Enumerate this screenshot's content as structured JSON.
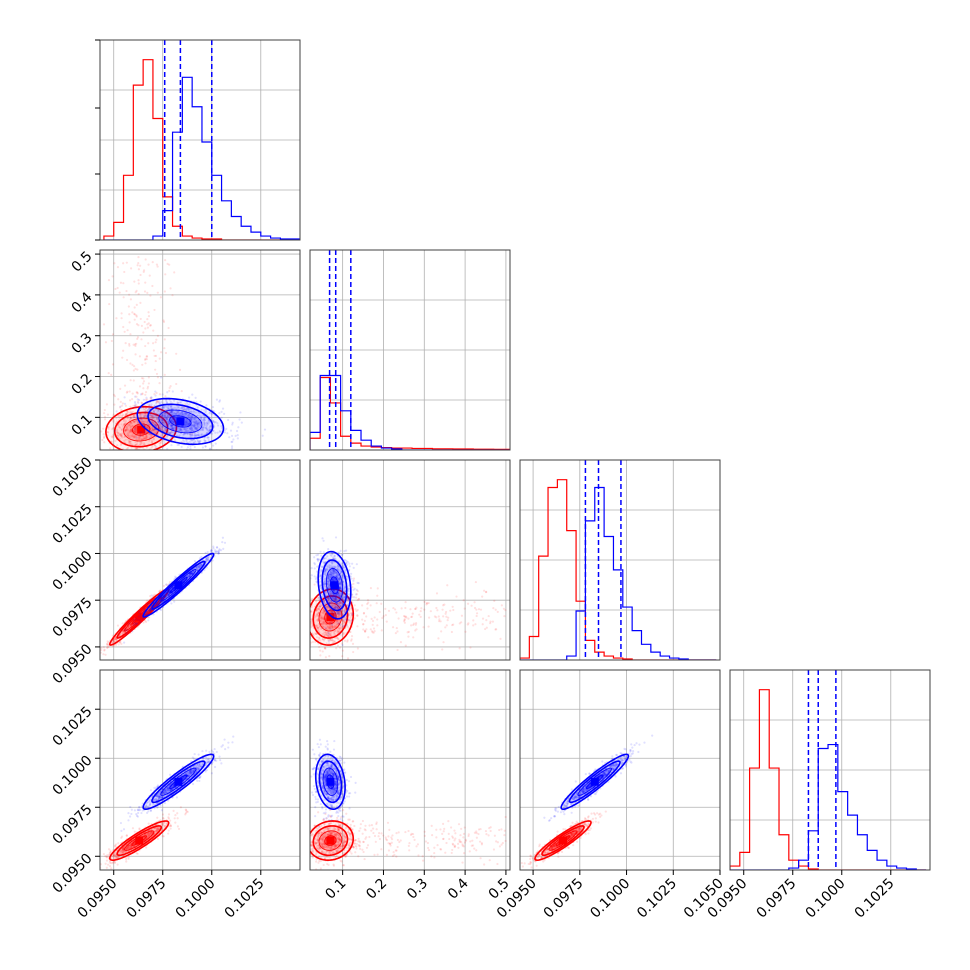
{
  "chart_data": {
    "type": "corner-plot",
    "title": "",
    "parameters": [
      "",
      "",
      "",
      ""
    ],
    "ranges": [
      [
        0.0943,
        0.1045
      ],
      [
        0.02,
        0.51
      ],
      [
        0.0943,
        0.105
      ],
      [
        0.0943,
        0.1045
      ]
    ],
    "x_ticks": [
      [
        "0.0950",
        "0.0975",
        "0.1000",
        "0.1025"
      ],
      [
        "0.1",
        "0.2",
        "0.3",
        "0.4",
        "0.5"
      ],
      [
        "0.0950",
        "0.0975",
        "0.1000",
        "0.1025",
        "0.1050"
      ],
      [
        "0.0950",
        "0.0975",
        "0.1000",
        "0.1025"
      ]
    ],
    "y_ticks": {
      "row1": [
        "0.1",
        "0.2",
        "0.3",
        "0.4",
        "0.5"
      ],
      "row2": [
        "0.0950",
        "0.0975",
        "0.1000",
        "0.1025",
        "0.1050"
      ],
      "row3": [
        "0.0950",
        "0.0975",
        "0.1000",
        "0.1025"
      ]
    },
    "grid": true,
    "legend": "none",
    "series": [
      {
        "color": "#ff0000",
        "marginals": [
          {
            "edges_start": 0.0945,
            "bin_width": 0.0005,
            "counts": [
              0.02,
              0.09,
              0.33,
              0.79,
              0.92,
              0.62,
              0.22,
              0.07,
              0.02,
              0.01,
              0.005,
              0.005,
              0,
              0,
              0,
              0,
              0,
              0,
              0,
              0
            ]
          },
          {
            "edges_start": 0.02,
            "bin_width": 0.025,
            "counts": [
              0.06,
              0.37,
              0.24,
              0.07,
              0.035,
              0.02,
              0.015,
              0.012,
              0.01,
              0.01,
              0.008,
              0.008,
              0.006,
              0.006,
              0.005,
              0.005,
              0.004,
              0.004,
              0.003,
              0.003
            ]
          },
          {
            "edges_start": 0.0943,
            "bin_width": 0.0005,
            "counts": [
              0.01,
              0.12,
              0.53,
              0.88,
              0.92,
              0.66,
              0.3,
              0.1,
              0.04,
              0.02,
              0.01,
              0.005,
              0,
              0,
              0,
              0,
              0,
              0,
              0,
              0,
              0
            ]
          },
          {
            "edges_start": 0.0943,
            "bin_width": 0.0005,
            "counts": [
              0.02,
              0.09,
              0.52,
              0.92,
              0.52,
              0.18,
              0.05,
              0.02,
              0.005,
              0,
              0,
              0,
              0,
              0,
              0,
              0,
              0,
              0,
              0,
              0
            ]
          }
        ],
        "quantiles": null,
        "contours": [
          {
            "row": 1,
            "col": 0,
            "mean": [
              0.0964,
              0.07
            ],
            "sigma": [
              0.0009,
              0.028
            ],
            "rho": 0.1
          },
          {
            "row": 2,
            "col": 0,
            "mean": [
              0.0963,
              0.0966
            ],
            "sigma": [
              0.00075,
              0.00075
            ],
            "rho": 0.97
          },
          {
            "row": 2,
            "col": 1,
            "mean": [
              0.07,
              0.0966
            ],
            "sigma": [
              0.028,
              0.00075
            ],
            "rho": 0.1
          },
          {
            "row": 3,
            "col": 0,
            "mean": [
              0.0963,
              0.0958
            ],
            "sigma": [
              0.00075,
              0.0005
            ],
            "rho": 0.9
          },
          {
            "row": 3,
            "col": 1,
            "mean": [
              0.07,
              0.0958
            ],
            "sigma": [
              0.028,
              0.0005
            ],
            "rho": 0.1
          },
          {
            "row": 3,
            "col": 2,
            "mean": [
              0.0966,
              0.0958
            ],
            "sigma": [
              0.00075,
              0.0005
            ],
            "rho": 0.92
          }
        ]
      },
      {
        "color": "#0000ff",
        "marginals": [
          {
            "edges_start": 0.0945,
            "bin_width": 0.0005,
            "counts": [
              0,
              0,
              0,
              0,
              0,
              0.02,
              0.15,
              0.55,
              0.83,
              0.68,
              0.5,
              0.33,
              0.2,
              0.12,
              0.07,
              0.04,
              0.02,
              0.01,
              0.005,
              0.005
            ]
          },
          {
            "edges_start": 0.02,
            "bin_width": 0.025,
            "counts": [
              0.09,
              0.38,
              0.38,
              0.2,
              0.1,
              0.05,
              0.02,
              0.01,
              0.005,
              0,
              0,
              0,
              0,
              0,
              0,
              0,
              0,
              0,
              0,
              0
            ]
          },
          {
            "edges_start": 0.0943,
            "bin_width": 0.0005,
            "counts": [
              0,
              0,
              0,
              0,
              0,
              0.02,
              0.25,
              0.71,
              0.88,
              0.63,
              0.46,
              0.27,
              0.15,
              0.08,
              0.04,
              0.02,
              0.01,
              0.005,
              0,
              0,
              0
            ]
          },
          {
            "edges_start": 0.0943,
            "bin_width": 0.0005,
            "counts": [
              0,
              0,
              0,
              0,
              0,
              0,
              0.01,
              0.05,
              0.2,
              0.62,
              0.64,
              0.4,
              0.28,
              0.18,
              0.1,
              0.05,
              0.02,
              0.01,
              0.005,
              0
            ]
          }
        ],
        "quantiles": [
          [
            0.0976,
            0.0984,
            0.1
          ],
          [
            0.068,
            0.083,
            0.12
          ],
          [
            0.0978,
            0.0985,
            0.0997
          ],
          [
            0.0983,
            0.0988,
            0.0997
          ]
        ],
        "contours": [
          {
            "row": 1,
            "col": 0,
            "mean": [
              0.0984,
              0.09
            ],
            "sigma": [
              0.0011,
              0.028
            ],
            "rho": -0.3
          },
          {
            "row": 2,
            "col": 0,
            "mean": [
              0.0983,
              0.0983
            ],
            "sigma": [
              0.0009,
              0.00085
            ],
            "rho": 0.97
          },
          {
            "row": 2,
            "col": 1,
            "mean": [
              0.08,
              0.0983
            ],
            "sigma": [
              0.02,
              0.0009
            ],
            "rho": -0.2
          },
          {
            "row": 3,
            "col": 0,
            "mean": [
              0.0983,
              0.0988
            ],
            "sigma": [
              0.0009,
              0.0007
            ],
            "rho": 0.93
          },
          {
            "row": 3,
            "col": 1,
            "mean": [
              0.07,
              0.0988
            ],
            "sigma": [
              0.018,
              0.0007
            ],
            "rho": -0.2
          },
          {
            "row": 3,
            "col": 2,
            "mean": [
              0.0983,
              0.0988
            ],
            "sigma": [
              0.0009,
              0.0007
            ],
            "rho": 0.94
          }
        ]
      }
    ]
  }
}
